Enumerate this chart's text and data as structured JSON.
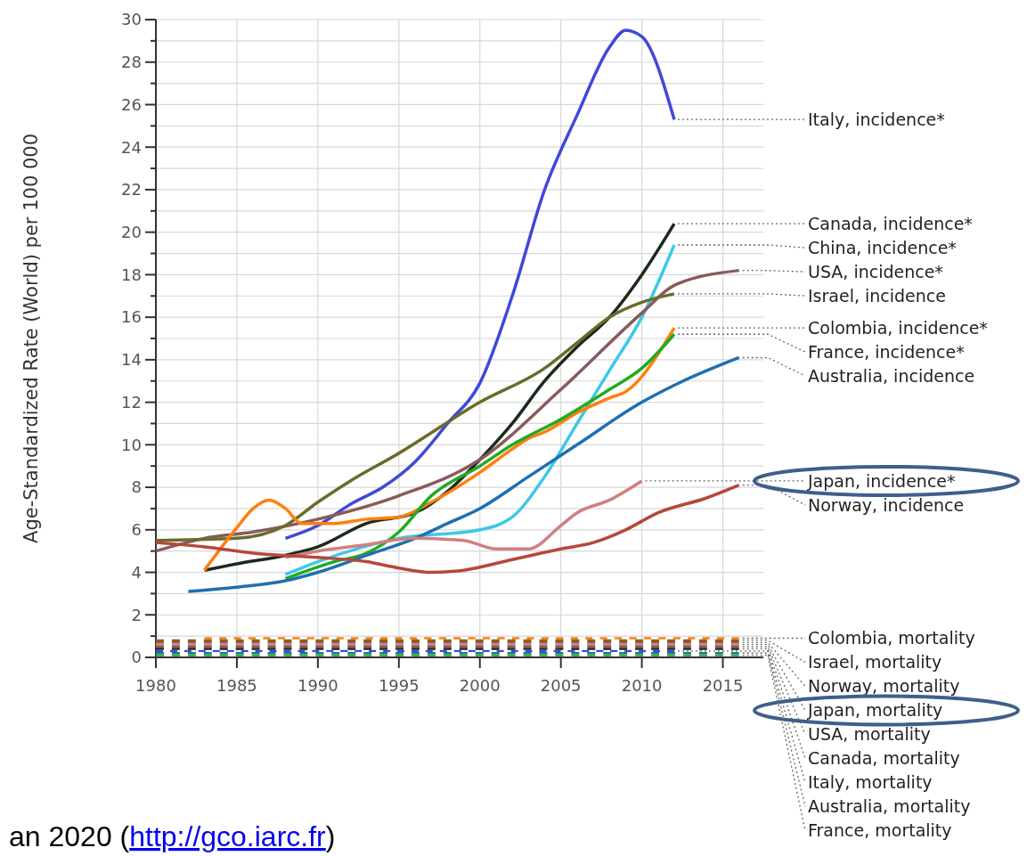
{
  "chart_data": {
    "type": "line",
    "ylabel": "Age-Standardized Rate (World) per 100 000",
    "xlim": [
      1980,
      2017.5
    ],
    "ylim": [
      0,
      30
    ],
    "xticks": [
      1980,
      1985,
      1990,
      1995,
      2000,
      2005,
      2010,
      2015
    ],
    "yticks": [
      0,
      {
        "value": 1,
        "label": null
      },
      2,
      {
        "value": 3,
        "label": null
      },
      4,
      {
        "value": 5,
        "label": null
      },
      6,
      {
        "value": 7,
        "label": null
      },
      8,
      {
        "value": 9,
        "label": null
      },
      10,
      {
        "value": 11,
        "label": null
      },
      12,
      {
        "value": 13,
        "label": null
      },
      14,
      {
        "value": 15,
        "label": null
      },
      16,
      {
        "value": 17,
        "label": null
      },
      18,
      {
        "value": 19,
        "label": null
      },
      20,
      {
        "value": 21,
        "label": null
      },
      22,
      {
        "value": 23,
        "label": null
      },
      24,
      {
        "value": 25,
        "label": null
      },
      26,
      {
        "value": 27,
        "label": null
      },
      28,
      {
        "value": 29,
        "label": null
      },
      30
    ],
    "grid": true,
    "line_style": "solid",
    "annotations": [
      "an 2020 (http://gco.iarc.fr)"
    ],
    "series": [
      {
        "name": "Italy, incidence*",
        "color": "#3f48d8",
        "x": [
          1988,
          1990,
          1992,
          1994,
          1996,
          1998,
          2000,
          2002,
          2004,
          2006,
          2008,
          2009,
          2010,
          2012
        ],
        "values": [
          5.6,
          6.2,
          7.2,
          8.0,
          9.2,
          11.0,
          12.9,
          17.0,
          22.0,
          25.5,
          28.7,
          29.5,
          29.2,
          25.3
        ]
      },
      {
        "name": "Canada, incidence*",
        "color": "#1c2a1c",
        "x": [
          1983,
          1985,
          1988,
          1990,
          1993,
          1996,
          1998,
          2000,
          2002,
          2004,
          2006,
          2008,
          2010,
          2012
        ],
        "values": [
          4.1,
          4.4,
          4.8,
          5.2,
          6.3,
          6.8,
          7.8,
          9.3,
          11.0,
          13.0,
          14.6,
          16.0,
          18.0,
          20.4
        ]
      },
      {
        "name": "China, incidence*",
        "color": "#3ec8e8",
        "x": [
          1988,
          1990,
          1995,
          2000,
          2002,
          2004,
          2006,
          2008,
          2010,
          2012
        ],
        "values": [
          3.9,
          4.5,
          5.6,
          6.0,
          6.6,
          8.5,
          11.0,
          13.5,
          16.0,
          19.4
        ]
      },
      {
        "name": "USA, incidence*",
        "color": "#8b5a5a",
        "x": [
          1980,
          1983,
          1986,
          1990,
          1995,
          2000,
          2005,
          2010,
          2012,
          2016
        ],
        "values": [
          5.0,
          5.6,
          5.9,
          6.5,
          7.6,
          9.3,
          12.6,
          16.2,
          17.5,
          18.2
        ]
      },
      {
        "name": "Israel, incidence",
        "color": "#6b6b2a",
        "x": [
          1980,
          1985,
          1988,
          1990,
          1992,
          1995,
          2000,
          2004,
          2006,
          2008,
          2010,
          2012
        ],
        "values": [
          5.5,
          5.6,
          6.2,
          7.3,
          8.3,
          9.6,
          12.0,
          13.6,
          14.8,
          16.0,
          16.7,
          17.1
        ]
      },
      {
        "name": "Colombia, incidence*",
        "color": "#ff7f0e",
        "x": [
          1983,
          1985,
          1986,
          1987,
          1988,
          1989,
          1991,
          1993,
          1995,
          1997,
          2000,
          2002,
          2003,
          2004,
          2006,
          2008,
          2009,
          2012
        ],
        "values": [
          4.1,
          6.1,
          7.0,
          7.4,
          7.0,
          6.3,
          6.3,
          6.5,
          6.6,
          7.3,
          8.7,
          9.8,
          10.3,
          10.6,
          11.5,
          12.2,
          12.5,
          15.5
        ]
      },
      {
        "name": "France, incidence*",
        "color": "#22aa22",
        "x": [
          1988,
          1991,
          1993,
          1995,
          1997,
          2000,
          2002,
          2005,
          2008,
          2010,
          2012
        ],
        "values": [
          3.7,
          4.5,
          4.9,
          5.9,
          7.6,
          9.0,
          10.0,
          11.2,
          12.6,
          13.6,
          15.2
        ]
      },
      {
        "name": "Australia, incidence",
        "color": "#1f6fb0",
        "x": [
          1982,
          1985,
          1988,
          1990,
          1993,
          1996,
          1998,
          2000,
          2003,
          2006,
          2010,
          2012,
          2016
        ],
        "values": [
          3.1,
          3.3,
          3.6,
          4.0,
          4.8,
          5.6,
          6.3,
          7.0,
          8.5,
          10.0,
          12.0,
          12.8,
          14.1
        ]
      },
      {
        "name": "Japan, incidence*",
        "color": "#d08080",
        "x": [
          1988,
          1990,
          1993,
          1996,
          1999,
          2001,
          2003,
          2005,
          2006,
          2008,
          2010
        ],
        "values": [
          4.7,
          5.0,
          5.3,
          5.6,
          5.5,
          5.1,
          5.1,
          6.2,
          6.8,
          7.4,
          8.3
        ]
      },
      {
        "name": "Norway, incidence",
        "color": "#b5483a",
        "x": [
          1980,
          1983,
          1986,
          1990,
          1993,
          1995,
          1997,
          1999,
          2002,
          2005,
          2007,
          2009,
          2011,
          2014,
          2016
        ],
        "values": [
          5.4,
          5.2,
          4.9,
          4.7,
          4.5,
          4.2,
          4.0,
          4.1,
          4.6,
          5.1,
          5.4,
          6.0,
          6.8,
          7.5,
          8.1
        ]
      },
      {
        "name": "Colombia, mortality",
        "color": "#ff7f0e",
        "line_style": "dotted",
        "x": [
          1983,
          2000,
          2016
        ],
        "values": [
          0.9,
          0.9,
          0.9
        ]
      },
      {
        "name": "Israel, mortality",
        "color": "#6b6b2a",
        "line_style": "dotted",
        "x": [
          1980,
          2000,
          2016
        ],
        "values": [
          0.8,
          0.8,
          0.8
        ]
      },
      {
        "name": "Norway, mortality",
        "color": "#b5483a",
        "line_style": "dotted",
        "x": [
          1980,
          2000,
          2016
        ],
        "values": [
          0.7,
          0.7,
          0.7
        ]
      },
      {
        "name": "Japan, mortality",
        "color": "#d08080",
        "line_style": "dotted",
        "x": [
          1980,
          2000,
          2016
        ],
        "values": [
          0.6,
          0.6,
          0.6
        ]
      },
      {
        "name": "USA, mortality",
        "color": "#8b5a5a",
        "line_style": "dotted",
        "x": [
          1980,
          2000,
          2016
        ],
        "values": [
          0.5,
          0.5,
          0.5
        ]
      },
      {
        "name": "Canada, mortality",
        "color": "#1c2a1c",
        "line_style": "dotted",
        "x": [
          1980,
          2000,
          2016
        ],
        "values": [
          0.4,
          0.4,
          0.4
        ]
      },
      {
        "name": "Italy, mortality",
        "color": "#3f48d8",
        "line_style": "dotted",
        "x": [
          1980,
          2000,
          2012
        ],
        "values": [
          0.3,
          0.3,
          0.3
        ]
      },
      {
        "name": "Australia, mortality",
        "color": "#1f6fb0",
        "line_style": "dotted",
        "x": [
          1980,
          2000,
          2016
        ],
        "values": [
          0.2,
          0.2,
          0.2
        ]
      },
      {
        "name": "France, mortality",
        "color": "#22aa22",
        "line_style": "dotted",
        "x": [
          1980,
          2000,
          2016
        ],
        "values": [
          0.1,
          0.1,
          0.1
        ]
      }
    ]
  }
}
